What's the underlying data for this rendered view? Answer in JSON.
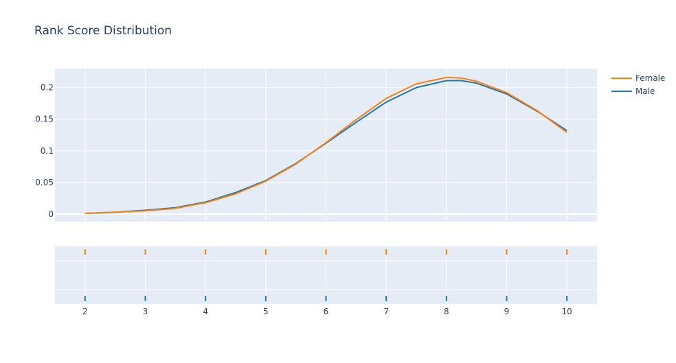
{
  "chart_data": {
    "type": "line",
    "title": "Rank Score Distribution",
    "xlabel": "",
    "ylabel": "",
    "xlim": [
      1.5,
      10.5
    ],
    "ylim": [
      -0.012,
      0.23
    ],
    "x_ticks": [
      2,
      3,
      4,
      5,
      6,
      7,
      8,
      9,
      10
    ],
    "y_ticks": [
      0,
      0.05,
      0.1,
      0.15,
      0.2
    ],
    "y_tick_labels": [
      "0",
      "0.05",
      "0.1",
      "0.15",
      "0.2"
    ],
    "grid": true,
    "legend_position": "top-right",
    "background": "#e5ecf6",
    "series": [
      {
        "name": "Female",
        "color": "#ff7f0e",
        "x": [
          2,
          2.5,
          3,
          3.5,
          4,
          4.5,
          5,
          5.5,
          6,
          6.5,
          7,
          7.5,
          8,
          8.25,
          8.5,
          9,
          9.5,
          10
        ],
        "values": [
          0.001,
          0.003,
          0.005,
          0.009,
          0.018,
          0.032,
          0.052,
          0.079,
          0.113,
          0.149,
          0.183,
          0.206,
          0.216,
          0.215,
          0.21,
          0.192,
          0.164,
          0.129
        ],
        "rug": [
          2,
          3,
          4,
          5,
          6,
          7,
          8,
          9,
          10
        ]
      },
      {
        "name": "Male",
        "color": "#1f77b4",
        "x": [
          2,
          2.5,
          3,
          3.5,
          4,
          4.5,
          5,
          5.5,
          6,
          6.5,
          7,
          7.5,
          8,
          8.25,
          8.5,
          9,
          9.5,
          10
        ],
        "values": [
          0.001,
          0.003,
          0.006,
          0.01,
          0.019,
          0.034,
          0.053,
          0.08,
          0.112,
          0.145,
          0.177,
          0.2,
          0.211,
          0.211,
          0.207,
          0.19,
          0.163,
          0.132
        ],
        "rug": [
          2,
          3,
          4,
          5,
          6,
          7,
          8,
          9,
          10
        ]
      }
    ]
  }
}
